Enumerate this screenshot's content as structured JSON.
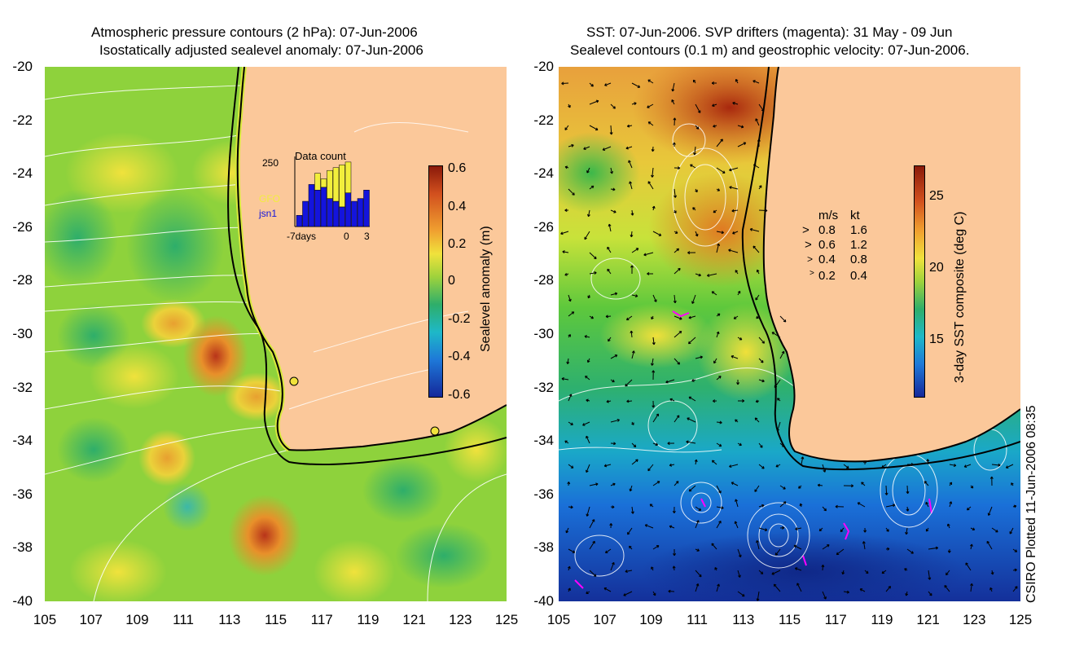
{
  "left_panel": {
    "title_line1": "Atmospheric pressure contours (2 hPa): 07-Jun-2006",
    "title_line2": "Isostatically adjusted sealevel anomaly: 07-Jun-2006",
    "colorbar": {
      "label": "Sealevel anomaly (m)",
      "ticks": [
        "0.6",
        "0.4",
        "0.2",
        "0",
        "-0.2",
        "-0.4",
        "-0.6"
      ],
      "range": [
        -0.6,
        0.6
      ]
    },
    "inset": {
      "title": "Data count",
      "ymax_label": "250",
      "series1_label": "GFO",
      "series2_label": "jsn1",
      "series1_color": "#f2ee3c",
      "series2_color": "#1414dc",
      "xlabel_left": "-7days",
      "xlabel_mid": "0",
      "xlabel_right": "3",
      "gfo_counts": [
        0,
        0,
        80,
        190,
        170,
        200,
        210,
        220,
        230,
        0,
        0,
        0
      ],
      "jsn1_counts": [
        40,
        90,
        150,
        130,
        140,
        100,
        90,
        70,
        120,
        90,
        100,
        130
      ]
    }
  },
  "right_panel": {
    "title_line1": "SST: 07-Jun-2006. SVP drifters (magenta): 31 May - 09 Jun",
    "title_line2": "Sealevel contours (0.1 m) and geostrophic velocity: 07-Jun-2006.",
    "colorbar": {
      "label": "3-day SST composite (deg C)",
      "ticks": [
        "25",
        "20",
        "15"
      ],
      "range": [
        11,
        27
      ]
    },
    "velocity_legend": {
      "header_ms": "m/s",
      "header_kt": "kt",
      "rows": [
        {
          "ms": "0.8",
          "kt": "1.6"
        },
        {
          "ms": "0.6",
          "kt": "1.2"
        },
        {
          "ms": "0.4",
          "kt": "0.8"
        },
        {
          "ms": "0.2",
          "kt": "0.4"
        }
      ]
    }
  },
  "axes": {
    "y_ticks": [
      "-20",
      "-22",
      "-24",
      "-26",
      "-28",
      "-30",
      "-32",
      "-34",
      "-36",
      "-38",
      "-40"
    ],
    "x_ticks": [
      "105",
      "107",
      "109",
      "111",
      "113",
      "115",
      "117",
      "119",
      "121",
      "123",
      "125"
    ],
    "lat_range": [
      -40,
      -20
    ],
    "lon_range": [
      105,
      125
    ]
  },
  "credit": "CSIRO Plotted 11-Jun-2006 08:35",
  "colors": {
    "land": "#fbc89a",
    "coast": "#000000",
    "contour": "#ffffff",
    "drifter": "#ff00ff"
  }
}
